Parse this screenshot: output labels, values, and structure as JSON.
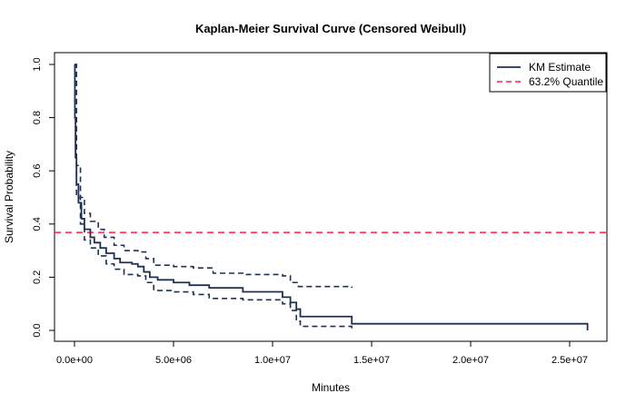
{
  "chart_data": {
    "type": "line",
    "title": "Kaplan-Meier Survival Curve (Censored Weibull)",
    "xlabel": "Minutes",
    "ylabel": "Survival Probability",
    "xlim": [
      -1000000,
      26500000
    ],
    "ylim": [
      -0.03,
      1.04
    ],
    "xticks": [
      0,
      5000000,
      10000000,
      15000000,
      20000000,
      25000000
    ],
    "xtick_labels": [
      "0.0e+00",
      "5.0e+06",
      "1.0e+07",
      "1.5e+07",
      "2.0e+07",
      "2.5e+07"
    ],
    "yticks": [
      0,
      0.2,
      0.4,
      0.6,
      0.8,
      1.0
    ],
    "ytick_labels": [
      "0.0",
      "0.2",
      "0.4",
      "0.6",
      "0.8",
      "1.0"
    ],
    "grid": false,
    "legend_position": "top-right",
    "legend": [
      {
        "label": "KM Estimate",
        "color": "#1f3050",
        "style": "solid"
      },
      {
        "label": "63.2% Quantile",
        "color": "#ff1f4b",
        "style": "dashed"
      }
    ],
    "km_estimate": {
      "x": [
        0,
        20000,
        50000,
        100000,
        200000,
        350000,
        500000,
        800000,
        1000000,
        1300000,
        1600000,
        2000000,
        2300000,
        2900000,
        3200000,
        3500000,
        3800000,
        4200000,
        5000000,
        5800000,
        6800000,
        8500000,
        10500000,
        10900000,
        11200000,
        11400000,
        14000000,
        25900000,
        25900000
      ],
      "y": [
        1.0,
        0.8,
        0.65,
        0.55,
        0.48,
        0.42,
        0.38,
        0.35,
        0.33,
        0.31,
        0.29,
        0.27,
        0.255,
        0.25,
        0.24,
        0.22,
        0.2,
        0.19,
        0.18,
        0.17,
        0.16,
        0.145,
        0.125,
        0.105,
        0.08,
        0.052,
        0.025,
        0.025,
        0.0
      ]
    },
    "upper_ci": {
      "x": [
        0,
        100000,
        300000,
        500000,
        800000,
        1200000,
        1500000,
        2000000,
        2500000,
        3200000,
        3600000,
        4000000,
        5000000,
        6000000,
        7000000,
        8500000,
        10500000,
        10900000,
        11300000,
        14000000
      ],
      "y": [
        1.0,
        0.62,
        0.5,
        0.44,
        0.41,
        0.38,
        0.35,
        0.32,
        0.3,
        0.295,
        0.27,
        0.245,
        0.24,
        0.235,
        0.215,
        0.21,
        0.205,
        0.18,
        0.165,
        0.16
      ]
    },
    "lower_ci": {
      "x": [
        0,
        100000,
        300000,
        500000,
        800000,
        1200000,
        1600000,
        2000000,
        2500000,
        3200000,
        3600000,
        4000000,
        5000000,
        6000000,
        6800000,
        8500000,
        10500000,
        10900000,
        11200000,
        11400000,
        14000000
      ],
      "y": [
        1.0,
        0.5,
        0.4,
        0.34,
        0.31,
        0.28,
        0.25,
        0.23,
        0.21,
        0.205,
        0.18,
        0.15,
        0.145,
        0.135,
        0.12,
        0.115,
        0.1,
        0.075,
        0.035,
        0.015,
        0.005
      ]
    },
    "quantile_line_y": 0.368,
    "colors": {
      "km": "#1f3050",
      "quantile": "#ff1f4b"
    }
  }
}
